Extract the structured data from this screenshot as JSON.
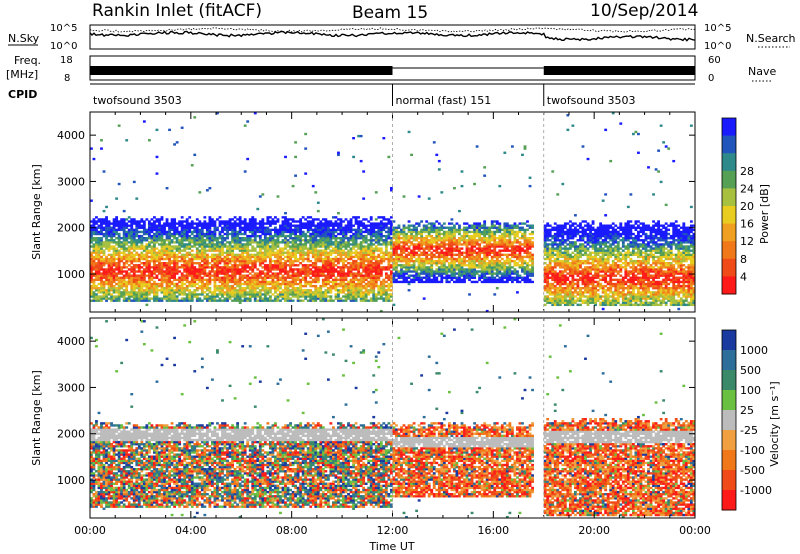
{
  "header": {
    "station": "Rankin Inlet (fitACF)",
    "beam": "Beam 15",
    "date": "10/Sep/2014"
  },
  "status_panels": {
    "left_labels": {
      "nsky": "N.Sky",
      "freq": "Freq.",
      "freq_unit": "[MHz]",
      "cpid": "CPID"
    },
    "right_labels": {
      "nsearch": "N.Search",
      "nave": "Nave"
    },
    "noise_ticks_left": [
      "10^5",
      "10^0"
    ],
    "noise_ticks_right": [
      "10^5",
      "10^0"
    ],
    "freq_ticks": [
      "18",
      "8"
    ],
    "nave_ticks": [
      "60",
      "0"
    ],
    "cpid_segments": [
      {
        "label": "twofsound 3503",
        "start_hour": 0,
        "end_hour": 12
      },
      {
        "label": "normal (fast) 151",
        "start_hour": 12,
        "end_hour": 18
      },
      {
        "label": "twofsound 3503",
        "start_hour": 18,
        "end_hour": 24
      }
    ]
  },
  "chart_data": [
    {
      "type": "heatmap",
      "name": "power",
      "ylabel": "Slant Range [km]",
      "xlabel": "Time UT",
      "xlim": [
        0,
        24
      ],
      "ylim": [
        180,
        4500
      ],
      "x_ticks": [
        "00:00",
        "04:00",
        "08:00",
        "12:00",
        "16:00",
        "20:00",
        "00:00"
      ],
      "y_ticks": [
        1000,
        2000,
        3000,
        4000
      ],
      "colorbar": {
        "label": "Power [dB]",
        "ticks": [
          "4",
          "8",
          "12",
          "16",
          "20",
          "24",
          "28"
        ],
        "colors": [
          "#1a1aff",
          "#2255bb",
          "#2e8a8a",
          "#55a055",
          "#a8c040",
          "#e8cc20",
          "#f0a020",
          "#f07818",
          "#f04a18",
          "#ff1a1a"
        ]
      },
      "scatter_bands": [
        {
          "start_hour": 0.0,
          "end_hour": 12.0,
          "range_low_km": 500,
          "range_high_km": 2100,
          "core_km": 1050,
          "peak_db": 30
        },
        {
          "start_hour": 12.0,
          "end_hour": 17.6,
          "range_low_km": 900,
          "range_high_km": 2000,
          "core_km": 1500,
          "peak_db": 28
        },
        {
          "start_hour": 18.0,
          "end_hour": 24.0,
          "range_low_km": 400,
          "range_high_km": 2000,
          "core_km": 900,
          "peak_db": 26
        }
      ]
    },
    {
      "type": "heatmap",
      "name": "velocity",
      "ylabel": "Slant Range [km]",
      "xlabel": "Time UT",
      "xlim": [
        0,
        24
      ],
      "ylim": [
        180,
        4500
      ],
      "x_ticks": [
        "00:00",
        "04:00",
        "08:00",
        "12:00",
        "16:00",
        "20:00",
        "00:00"
      ],
      "y_ticks": [
        1000,
        2000,
        3000,
        4000
      ],
      "colorbar": {
        "label": "Velocity [m s⁻¹]",
        "ticks": [
          "1000",
          "500",
          "100",
          "25",
          "-25",
          "-100",
          "-500",
          "-1000"
        ],
        "colors": [
          "#1a3aa0",
          "#2e6e9a",
          "#3a8a6a",
          "#6ac040",
          "#bcbcbc",
          "#f0a040",
          "#f07818",
          "#f04a18",
          "#ff1a1a"
        ]
      },
      "scatter_bands": [
        {
          "start_hour": 0.0,
          "end_hour": 12.0,
          "range_low_km": 500,
          "range_high_km": 2100,
          "ground_scatter_km": 1950,
          "dominant": "toward"
        },
        {
          "start_hour": 12.0,
          "end_hour": 17.6,
          "range_low_km": 700,
          "range_high_km": 2100,
          "ground_scatter_km": 1800,
          "dominant": "away"
        },
        {
          "start_hour": 18.0,
          "end_hour": 24.0,
          "range_low_km": 300,
          "range_high_km": 2200,
          "ground_scatter_km": 1900,
          "dominant": "away"
        }
      ]
    }
  ]
}
